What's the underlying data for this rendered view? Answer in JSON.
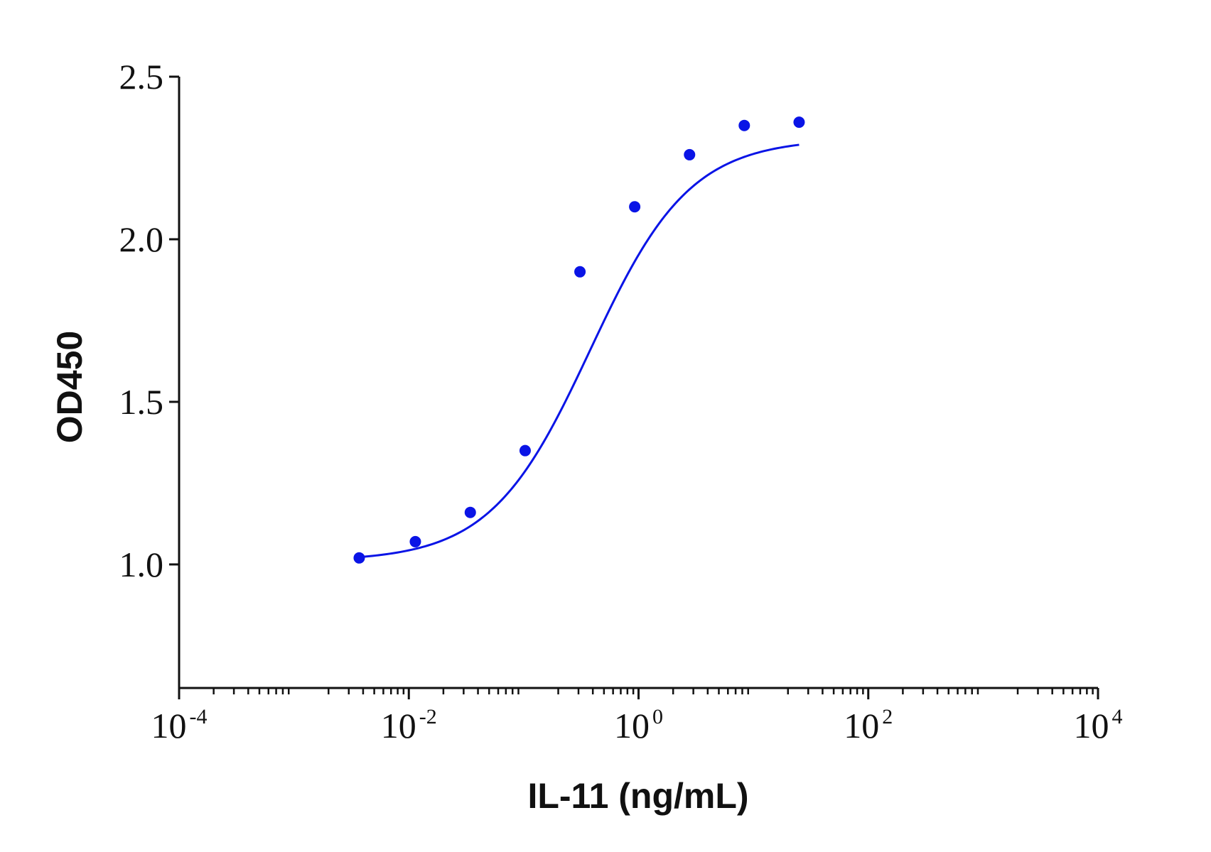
{
  "chart_data": {
    "type": "scatter",
    "title": "",
    "xlabel": "IL-11 (ng/mL)",
    "ylabel": "OD450",
    "x_scale": "log",
    "xlim": [
      0.0001,
      10000
    ],
    "ylim": [
      0.62,
      2.5
    ],
    "x_ticks": [
      {
        "value": 0.0001,
        "base": "10",
        "exp": "-4"
      },
      {
        "value": 0.01,
        "base": "10",
        "exp": "-2"
      },
      {
        "value": 1,
        "base": "10",
        "exp": "0"
      },
      {
        "value": 100,
        "base": "10",
        "exp": "2"
      },
      {
        "value": 10000,
        "base": "10",
        "exp": "4"
      }
    ],
    "y_ticks": [
      {
        "value": 1.0,
        "label": "1.0"
      },
      {
        "value": 1.5,
        "label": "1.5"
      },
      {
        "value": 2.0,
        "label": "2.0"
      },
      {
        "value": 2.5,
        "label": "2.5"
      }
    ],
    "grid": false,
    "legend": "none",
    "series": [
      {
        "color": "#0a14e6",
        "points": [
          {
            "x": 0.0037,
            "y": 1.02
          },
          {
            "x": 0.0114,
            "y": 1.07
          },
          {
            "x": 0.0343,
            "y": 1.16
          },
          {
            "x": 0.103,
            "y": 1.35
          },
          {
            "x": 0.309,
            "y": 1.9
          },
          {
            "x": 0.926,
            "y": 2.1
          },
          {
            "x": 2.78,
            "y": 2.26
          },
          {
            "x": 8.33,
            "y": 2.35
          },
          {
            "x": 25,
            "y": 2.36
          }
        ],
        "fit": {
          "model": "4PL",
          "bottom": 1.01,
          "top": 2.31,
          "ec50": 0.38,
          "hill": 1.0,
          "x_range": [
            0.0037,
            25
          ]
        }
      }
    ]
  }
}
